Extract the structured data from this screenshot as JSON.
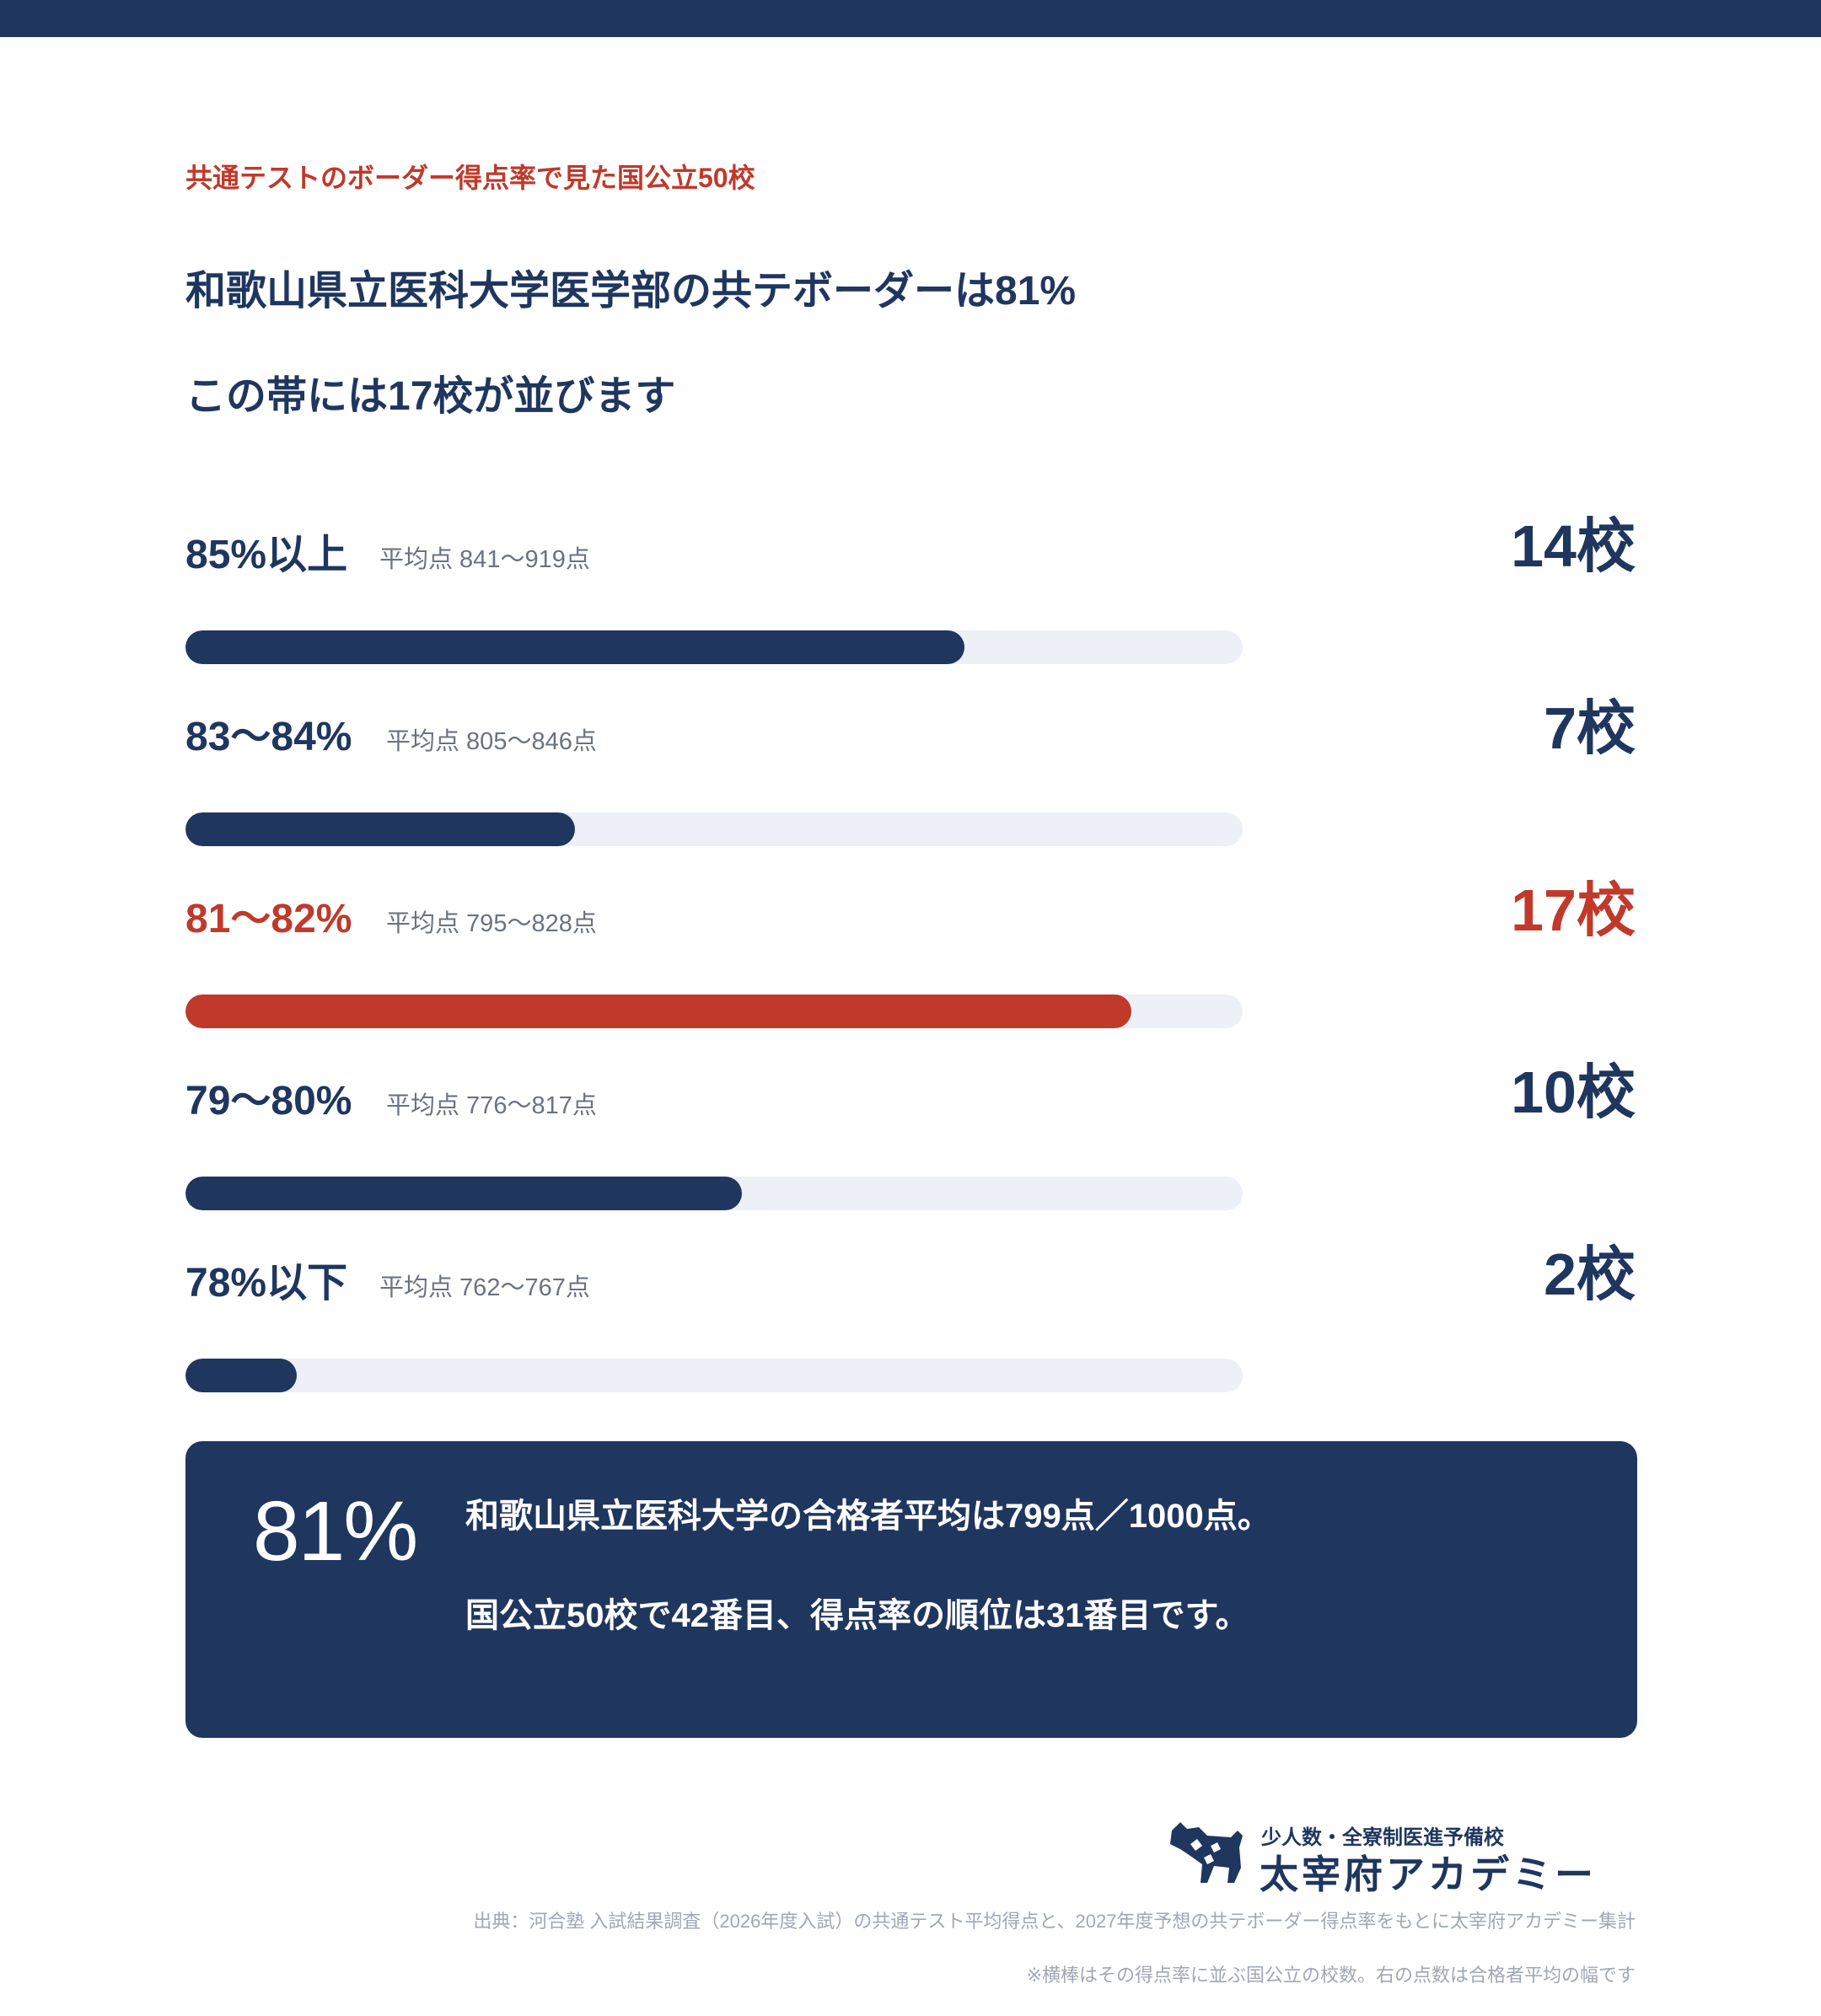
{
  "header": {
    "kicker": "共通テストのボーダー得点率で見た国公立50校",
    "headline_1": "和歌山県立医科大学医学部の共テボーダーは81%",
    "headline_2": "この帯には17校が並びます"
  },
  "colors": {
    "navy": "#1f365f",
    "highlight": "#c0392b",
    "track": "#edf0f7"
  },
  "chart_data": {
    "type": "bar",
    "orientation": "horizontal",
    "categories": [
      "85%以上",
      "83〜84%",
      "81〜82%",
      "79〜80%",
      "78%以下"
    ],
    "sublabels": [
      "平均点 841〜919点",
      "平均点 805〜846点",
      "平均点 795〜828点",
      "平均点 776〜817点",
      "平均点 762〜767点"
    ],
    "values": [
      14,
      7,
      17,
      10,
      2
    ],
    "value_labels": [
      "14校",
      "7校",
      "17校",
      "10校",
      "2校"
    ],
    "highlight_index": 2,
    "xlim": [
      0,
      19
    ]
  },
  "callout": {
    "percent": "81%",
    "line_1": "和歌山県立医科大学の合格者平均は799点／1000点。",
    "line_2": "国公立50校で42番目、得点率の順位は31番目です。"
  },
  "logo": {
    "tagline": "少人数・全寮制医進予備校",
    "name": "太宰府アカデミー",
    "icon": "dog-silhouette-icon"
  },
  "footnotes": {
    "source": "出典：河合塾 入試結果調査（2026年度入試）の共通テスト平均得点と、2027年度予想の共テボーダー得点率をもとに太宰府アカデミー集計",
    "note": "※横棒はその得点率に並ぶ国公立の校数。右の点数は合格者平均の幅です"
  }
}
